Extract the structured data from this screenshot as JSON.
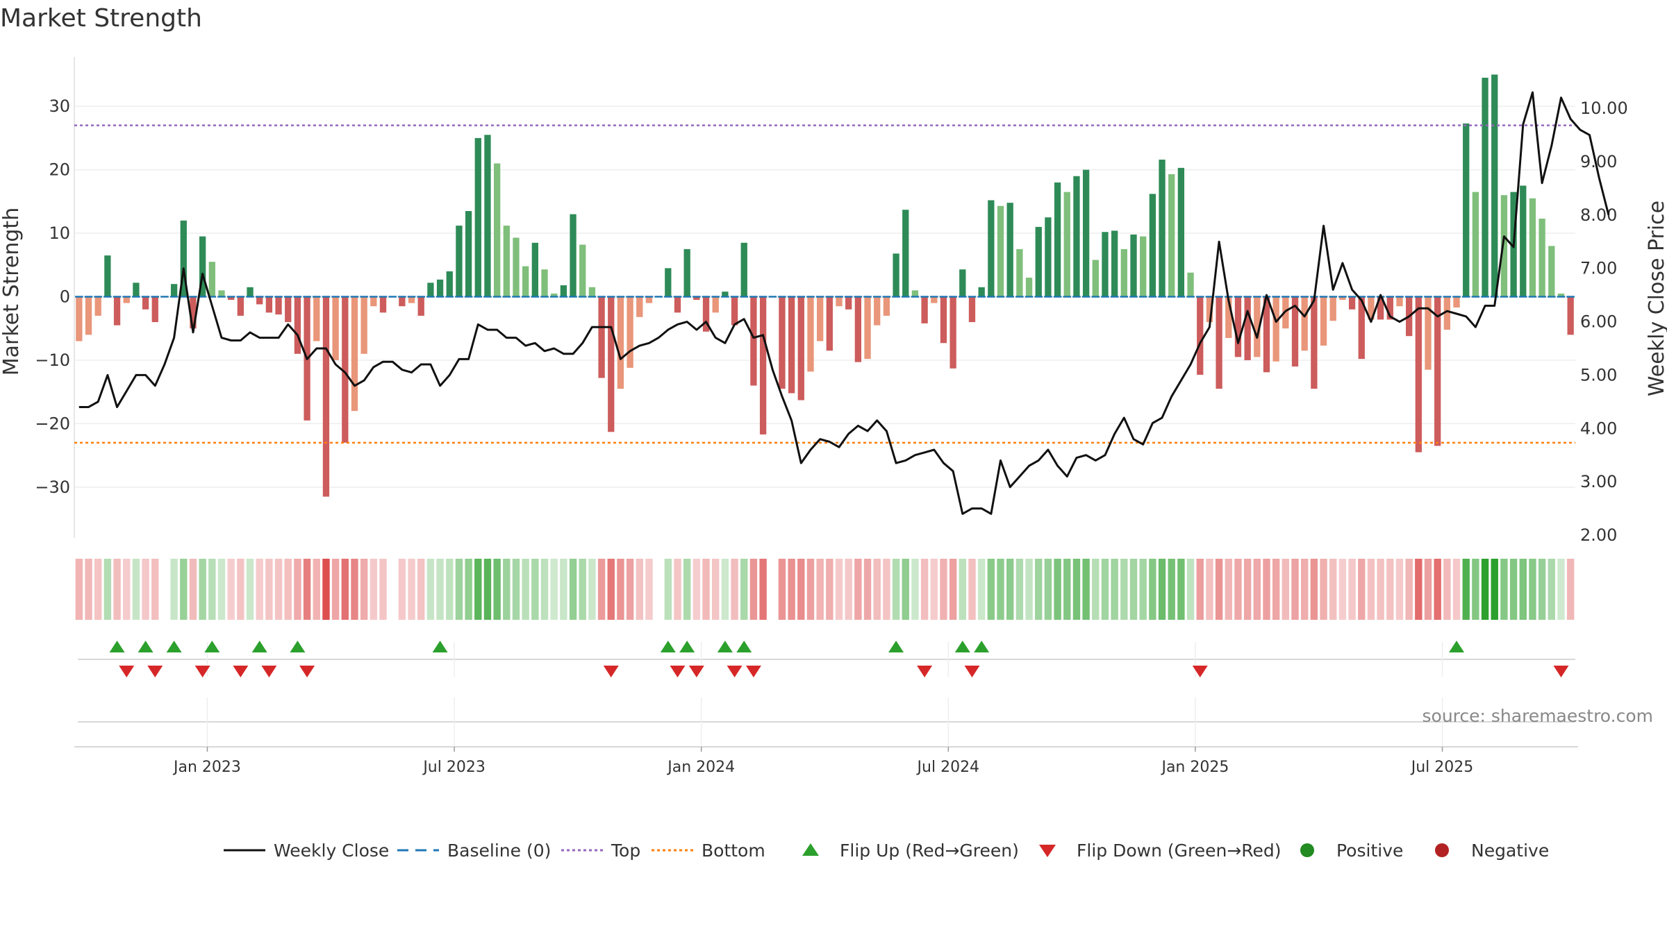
{
  "chart_data": {
    "type": "bar",
    "title": "Market Strength",
    "ylabel_left": "Market Strength",
    "ylabel_right": "Weekly Close Price",
    "source": "source: sharemaestro.com",
    "ylim_left": [
      -38,
      38
    ],
    "ylim_right": [
      2.0,
      10.6
    ],
    "yticks_left": [
      {
        "v": 30,
        "label": "30"
      },
      {
        "v": 20,
        "label": "20"
      },
      {
        "v": 10,
        "label": "10"
      },
      {
        "v": 0,
        "label": "0"
      },
      {
        "v": -10,
        "label": "−10"
      },
      {
        "v": -20,
        "label": "−20"
      },
      {
        "v": -30,
        "label": "−30"
      }
    ],
    "yticks_right": [
      {
        "v": 10,
        "label": "10.00"
      },
      {
        "v": 9,
        "label": "9.00"
      },
      {
        "v": 8,
        "label": "8.00"
      },
      {
        "v": 7,
        "label": "7.00"
      },
      {
        "v": 6,
        "label": "6.00"
      },
      {
        "v": 5,
        "label": "5.00"
      },
      {
        "v": 4,
        "label": "4.00"
      },
      {
        "v": 3,
        "label": "3.00"
      },
      {
        "v": 2,
        "label": "2.00"
      }
    ],
    "xticks": [
      {
        "week": 14,
        "label": "Jan 2023"
      },
      {
        "week": 40,
        "label": "Jul 2023"
      },
      {
        "week": 66,
        "label": "Jan 2024"
      },
      {
        "week": 92,
        "label": "Jul 2024"
      },
      {
        "week": 118,
        "label": "Jan 2025"
      },
      {
        "week": 144,
        "label": "Jul 2025"
      }
    ],
    "reference_lines": {
      "baseline": 0,
      "top": 27,
      "bottom": -23
    },
    "colors": {
      "pos_strong": "#2e8b57",
      "pos_weak": "#7fbf7b",
      "neg_strong": "#cd5c5c",
      "neg_weak": "#e9967a",
      "close": "#111111",
      "baseline": "#1f77b4",
      "top": "#9467bd",
      "bottom": "#ff7f0e",
      "flip_up": "#2ca02c",
      "flip_down": "#d62728",
      "positive": "#228b22",
      "negative": "#b22222"
    },
    "strength": [
      -7,
      -6,
      -3,
      6.5,
      -4.5,
      -1,
      2.2,
      -2,
      -4,
      0,
      2,
      12,
      -5,
      9.5,
      5.5,
      1,
      -0.5,
      -3,
      1.5,
      -1.2,
      -2.5,
      -2.8,
      -4,
      -9,
      -19.5,
      -7,
      -31.5,
      -10,
      -23,
      -18,
      -9,
      -1.5,
      -2.5,
      0,
      -1.5,
      -1,
      -3,
      2.2,
      2.7,
      4,
      11.2,
      13.5,
      25,
      25.5,
      21,
      11.2,
      9.3,
      4.8,
      8.5,
      4.3,
      0.5,
      1.8,
      13,
      8.2,
      1.5,
      -12.8,
      -21.3,
      -14.5,
      -11.2,
      -3.2,
      -1,
      0,
      4.5,
      -2.5,
      7.5,
      -0.5,
      -5.5,
      -2.5,
      0.8,
      -4.5,
      8.5,
      -14,
      -21.7,
      0,
      -14.5,
      -15.2,
      -16.3,
      -11.8,
      -7,
      -8.5,
      -1.5,
      -2,
      -10.3,
      -9.8,
      -4.5,
      -3,
      6.8,
      13.7,
      1,
      -4.2,
      -1,
      -7.3,
      -11.3,
      4.3,
      -4,
      1.5,
      15.2,
      14.3,
      14.8,
      7.5,
      3,
      11,
      12.5,
      18,
      16.5,
      19,
      20,
      5.8,
      10.2,
      10.4,
      7.5,
      9.8,
      9.5,
      16.2,
      21.6,
      19.3,
      20.3,
      3.8,
      -12.3,
      -4,
      -14.5,
      -6.5,
      -9.5,
      -10,
      -9.5,
      -11.9,
      -10.2,
      -5,
      -11,
      -8.5,
      -14.5,
      -7.7,
      -3.8,
      -0.5,
      -2,
      -9.8,
      -3.6,
      -3.6,
      -3.6,
      -1.5,
      -6.2,
      -24.5,
      -11.5,
      -23.5,
      -5.2,
      -1.7,
      27.3,
      16.5,
      34.5,
      35,
      16,
      16.5,
      17.5,
      15.5,
      12.3,
      8,
      0.5,
      -6
    ],
    "close": [
      4.4,
      4.4,
      4.5,
      5.0,
      4.4,
      4.7,
      5.0,
      5.0,
      4.8,
      5.2,
      5.7,
      7.0,
      5.8,
      6.9,
      6.3,
      5.7,
      5.65,
      5.65,
      5.8,
      5.7,
      5.7,
      5.7,
      5.95,
      5.75,
      5.3,
      5.5,
      5.5,
      5.2,
      5.05,
      4.8,
      4.9,
      5.15,
      5.25,
      5.25,
      5.1,
      5.05,
      5.2,
      5.2,
      4.8,
      5.0,
      5.3,
      5.3,
      5.95,
      5.85,
      5.85,
      5.7,
      5.7,
      5.55,
      5.6,
      5.45,
      5.5,
      5.4,
      5.4,
      5.6,
      5.9,
      5.9,
      5.9,
      5.3,
      5.45,
      5.55,
      5.6,
      5.7,
      5.85,
      5.95,
      6.0,
      5.85,
      6.0,
      5.7,
      5.6,
      5.95,
      6.05,
      5.7,
      5.75,
      5.1,
      4.6,
      4.15,
      3.35,
      3.6,
      3.8,
      3.75,
      3.65,
      3.9,
      4.05,
      3.95,
      4.15,
      3.95,
      3.35,
      3.4,
      3.5,
      3.55,
      3.6,
      3.35,
      3.2,
      2.4,
      2.5,
      2.5,
      2.4,
      3.4,
      2.9,
      3.1,
      3.3,
      3.4,
      3.6,
      3.3,
      3.1,
      3.45,
      3.5,
      3.4,
      3.5,
      3.9,
      4.2,
      3.8,
      3.7,
      4.1,
      4.2,
      4.6,
      4.9,
      5.2,
      5.6,
      5.9,
      7.5,
      6.4,
      5.6,
      6.2,
      5.7,
      6.5,
      6.0,
      6.2,
      6.3,
      6.1,
      6.4,
      7.8,
      6.6,
      7.1,
      6.6,
      6.4,
      6.0,
      6.5,
      6.1,
      6.0,
      6.1,
      6.25,
      6.25,
      6.1,
      6.2,
      6.15,
      6.1,
      5.9,
      6.3,
      6.3,
      7.6,
      7.4,
      9.7,
      10.3,
      8.6,
      9.3,
      10.2,
      9.8,
      9.6,
      9.5,
      8.7,
      8.0
    ],
    "flips_up": [
      4,
      7,
      10,
      14,
      19,
      23,
      38,
      62,
      64,
      68,
      70,
      86,
      93,
      95,
      145
    ],
    "flips_down": [
      5,
      8,
      13,
      17,
      20,
      24,
      56,
      63,
      65,
      69,
      71,
      89,
      94,
      118,
      156
    ]
  },
  "legend": [
    {
      "label": "Weekly Close",
      "icon": "solid-line",
      "color": "#111111"
    },
    {
      "label": "Baseline (0)",
      "icon": "dashed-line",
      "color": "#1f77b4"
    },
    {
      "label": "Top",
      "icon": "dotted-line",
      "color": "#9467bd"
    },
    {
      "label": "Bottom",
      "icon": "dotted-line",
      "color": "#ff7f0e"
    },
    {
      "label": "Flip Up (Red→Green)",
      "icon": "triangle-up",
      "color": "#2ca02c"
    },
    {
      "label": "Flip Down (Green→Red)",
      "icon": "triangle-down",
      "color": "#d62728"
    },
    {
      "label": "Positive",
      "icon": "circle",
      "color": "#228b22"
    },
    {
      "label": "Negative",
      "icon": "circle",
      "color": "#b22222"
    }
  ]
}
